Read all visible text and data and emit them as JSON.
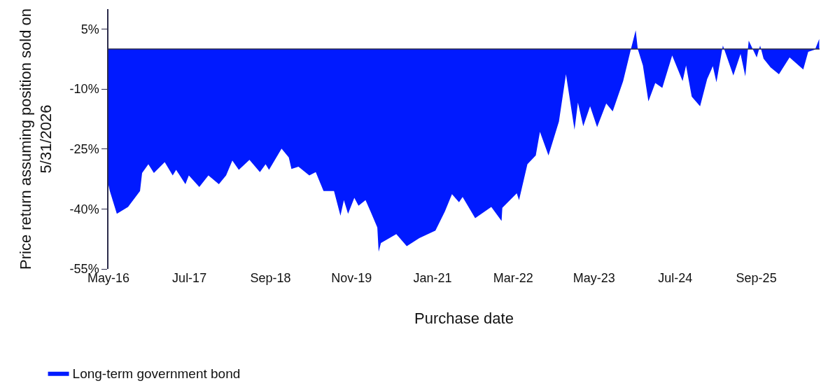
{
  "chart_data": {
    "type": "area",
    "xlabel": "Purchase date",
    "ylabel": "Price return assuming position sold on 5/31/2026",
    "x": [
      "2016-05-01",
      "2016-05-08",
      "2016-06-14",
      "2016-08-12",
      "2016-10-14",
      "2016-10-25",
      "2016-11-27",
      "2016-12-26",
      "2017-02-21",
      "2017-04-04",
      "2017-04-22",
      "2017-06-10",
      "2017-06-28",
      "2017-08-22",
      "2017-10-09",
      "2017-12-03",
      "2018-01-10",
      "2018-02-12",
      "2018-03-18",
      "2018-05-13",
      "2018-07-07",
      "2018-08-06",
      "2018-08-24",
      "2018-10-29",
      "2018-12-06",
      "2018-12-20",
      "2019-01-26",
      "2019-03-24",
      "2019-04-27",
      "2019-06-07",
      "2019-08-01",
      "2019-09-04",
      "2019-09-22",
      "2019-10-14",
      "2019-11-16",
      "2019-12-08",
      "2020-01-14",
      "2020-02-09",
      "2020-03-16",
      "2020-03-23",
      "2020-04-04",
      "2020-06-24",
      "2020-08-18",
      "2020-10-23",
      "2021-01-16",
      "2021-03-07",
      "2021-04-13",
      "2021-05-20",
      "2021-06-08",
      "2021-08-13",
      "2021-11-06",
      "2021-12-30",
      "2022-01-03",
      "2022-03-20",
      "2022-04-01",
      "2022-05-15",
      "2022-06-28",
      "2022-07-20",
      "2022-09-03",
      "2022-10-28",
      "2022-12-04",
      "2023-01-18",
      "2023-02-05",
      "2023-03-05",
      "2023-04-10",
      "2023-05-17",
      "2023-07-04",
      "2023-08-07",
      "2023-10-01",
      "2023-11-11",
      "2023-12-06",
      "2023-12-17",
      "2024-01-13",
      "2024-02-11",
      "2024-03-18",
      "2024-04-24",
      "2024-06-15",
      "2024-08-09",
      "2024-08-27",
      "2024-09-26",
      "2024-11-09",
      "2024-12-16",
      "2025-01-15",
      "2025-02-03",
      "2025-03-09",
      "2025-05-03",
      "2025-06-10",
      "2025-07-05",
      "2025-07-23",
      "2025-09-03",
      "2025-09-21",
      "2025-10-09",
      "2025-11-15",
      "2025-12-29",
      "2026-02-23",
      "2026-05-06",
      "2026-06-01",
      "2026-07-07",
      "2026-07-29"
    ],
    "series": [
      {
        "name": "Long-term government bond",
        "color": "#001aff",
        "values": [
          -34,
          -35.5,
          -41.2,
          -39.5,
          -35.5,
          -31,
          -28.8,
          -31,
          -28.3,
          -31.6,
          -30.2,
          -33.8,
          -31.6,
          -34.5,
          -31.6,
          -33.8,
          -31.6,
          -27.9,
          -30.2,
          -27.7,
          -30.8,
          -28.8,
          -30.2,
          -24.9,
          -27.1,
          -30,
          -29.4,
          -31.6,
          -30.8,
          -35.5,
          -35.5,
          -41.7,
          -37.8,
          -41.2,
          -37.2,
          -39.2,
          -37.8,
          -40.6,
          -44.6,
          -50.7,
          -48.5,
          -46.3,
          -49.3,
          -47.3,
          -45.4,
          -40.6,
          -36.3,
          -38.3,
          -37,
          -42.3,
          -39.5,
          -43,
          -39.7,
          -36.1,
          -37.8,
          -28.8,
          -26.6,
          -20.7,
          -26.6,
          -18.1,
          -6.3,
          -20.2,
          -13.4,
          -19.3,
          -14.3,
          -19.5,
          -13.6,
          -15.6,
          -8,
          0,
          4.7,
          0,
          -4.1,
          -13.1,
          -8.5,
          -9.7,
          -1.6,
          -8,
          -4.1,
          -11.9,
          -14.3,
          -7.5,
          -4.3,
          -8.3,
          0.9,
          -6.6,
          -1.2,
          -6.8,
          2.1,
          -2.1,
          0.9,
          -2.4,
          -4.6,
          -6.3,
          -2.1,
          -5.1,
          -0.7,
          -0.1,
          2.5
        ]
      }
    ],
    "xlim": [
      "2016-05-01",
      "2026-07-31"
    ],
    "xticks": [
      {
        "value": "2016-05-01",
        "label": "May-16"
      },
      {
        "value": "2017-07-01",
        "label": "Jul-17"
      },
      {
        "value": "2018-09-01",
        "label": "Sep-18"
      },
      {
        "value": "2019-11-01",
        "label": "Nov-19"
      },
      {
        "value": "2021-01-01",
        "label": "Jan-21"
      },
      {
        "value": "2022-03-01",
        "label": "Mar-22"
      },
      {
        "value": "2023-05-01",
        "label": "May-23"
      },
      {
        "value": "2024-07-01",
        "label": "Jul-24"
      },
      {
        "value": "2025-09-01",
        "label": "Sep-25"
      }
    ],
    "ylim": [
      -55,
      10
    ],
    "yticks": [
      {
        "value": 5,
        "label": "5%"
      },
      {
        "value": -10,
        "label": "-10%"
      },
      {
        "value": -25,
        "label": "-25%"
      },
      {
        "value": -40,
        "label": "-40%"
      },
      {
        "value": -55,
        "label": "-55%"
      }
    ],
    "ref_lines": [
      {
        "axis": "y",
        "value": 0,
        "color": "#2b2b4a"
      }
    ],
    "legend": "bottom left"
  }
}
